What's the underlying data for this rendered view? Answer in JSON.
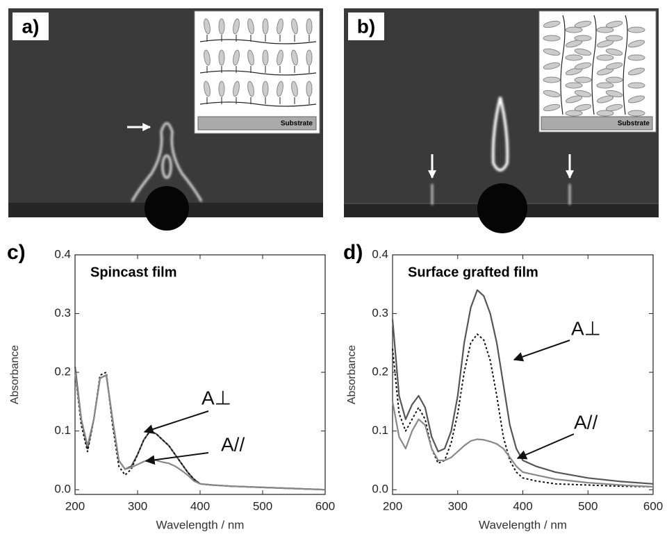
{
  "panels": [
    {
      "label": "a)",
      "inset_label": "Substrate"
    },
    {
      "label": "b)",
      "inset_label": "Substrate"
    }
  ],
  "chart_data": [
    {
      "type": "line",
      "panel_label": "c)",
      "title": "Spincast film",
      "x_label": "Wavelength / nm",
      "y_label": "Absorbance",
      "x": [
        200,
        210,
        220,
        230,
        240,
        250,
        260,
        270,
        280,
        290,
        300,
        310,
        320,
        330,
        340,
        350,
        360,
        370,
        380,
        390,
        400,
        420,
        450,
        500,
        550,
        600
      ],
      "series": [
        {
          "color": "#555555",
          "style": "solid",
          "values": [
            0.21,
            0.12,
            0.07,
            0.12,
            0.19,
            0.195,
            0.12,
            0.05,
            0.035,
            0.04,
            0.06,
            0.085,
            0.1,
            0.095,
            0.085,
            0.075,
            0.06,
            0.045,
            0.03,
            0.018,
            0.01,
            0.008,
            0.006,
            0.004,
            0.002,
            0.0
          ]
        },
        {
          "color": "#111111",
          "style": "dotted",
          "values": [
            0.2,
            0.11,
            0.065,
            0.12,
            0.195,
            0.2,
            0.11,
            0.04,
            0.025,
            0.035,
            0.06,
            0.085,
            0.1,
            0.095,
            0.085,
            0.075,
            0.06,
            0.045,
            0.03,
            0.018,
            0.01,
            0.008,
            0.006,
            0.004,
            0.002,
            0.0
          ]
        },
        {
          "color": "#888888",
          "style": "solid",
          "values": [
            0.2,
            0.12,
            0.075,
            0.12,
            0.19,
            0.195,
            0.12,
            0.05,
            0.035,
            0.038,
            0.043,
            0.048,
            0.052,
            0.05,
            0.047,
            0.045,
            0.04,
            0.033,
            0.025,
            0.015,
            0.01,
            0.008,
            0.006,
            0.004,
            0.002,
            0.0
          ]
        }
      ],
      "annotations": [
        "A⊥",
        "A//"
      ],
      "xlim": [
        200,
        600
      ],
      "xticks": [
        200,
        300,
        400,
        500,
        600
      ],
      "ylim": [
        -0.008,
        0.4
      ],
      "yticks": [
        {
          "value": 0,
          "label": "0.0"
        },
        0.1,
        0.2,
        0.3,
        0.4
      ]
    },
    {
      "type": "line",
      "panel_label": "d)",
      "title": "Surface grafted film",
      "x_label": "Wavelength / nm",
      "y_label": "Absorbance",
      "x": [
        200,
        210,
        220,
        230,
        240,
        250,
        260,
        270,
        280,
        290,
        300,
        310,
        320,
        330,
        340,
        350,
        360,
        370,
        380,
        390,
        400,
        420,
        450,
        500,
        550,
        600
      ],
      "series": [
        {
          "color": "#555555",
          "style": "solid",
          "values": [
            0.29,
            0.16,
            0.12,
            0.145,
            0.16,
            0.14,
            0.09,
            0.065,
            0.07,
            0.1,
            0.16,
            0.25,
            0.31,
            0.34,
            0.33,
            0.3,
            0.25,
            0.18,
            0.11,
            0.07,
            0.05,
            0.04,
            0.03,
            0.02,
            0.014,
            0.01
          ]
        },
        {
          "color": "#111111",
          "style": "dotted",
          "values": [
            0.24,
            0.13,
            0.1,
            0.12,
            0.14,
            0.12,
            0.07,
            0.045,
            0.05,
            0.08,
            0.13,
            0.2,
            0.25,
            0.265,
            0.255,
            0.22,
            0.16,
            0.09,
            0.05,
            0.03,
            0.02,
            0.015,
            0.01,
            0.008,
            0.006,
            0.005
          ]
        },
        {
          "color": "#888888",
          "style": "solid",
          "values": [
            0.15,
            0.09,
            0.07,
            0.1,
            0.12,
            0.11,
            0.07,
            0.05,
            0.05,
            0.055,
            0.065,
            0.075,
            0.083,
            0.086,
            0.085,
            0.082,
            0.078,
            0.07,
            0.055,
            0.04,
            0.03,
            0.025,
            0.018,
            0.012,
            0.008,
            0.005
          ]
        }
      ],
      "annotations": [
        "A⊥",
        "A//"
      ],
      "xlim": [
        200,
        600
      ],
      "xticks": [
        200,
        300,
        400,
        500,
        600
      ],
      "ylim": [
        -0.008,
        0.4
      ],
      "yticks": [
        {
          "value": 0,
          "label": "0.0"
        },
        0.1,
        0.2,
        0.3,
        0.4
      ]
    }
  ]
}
